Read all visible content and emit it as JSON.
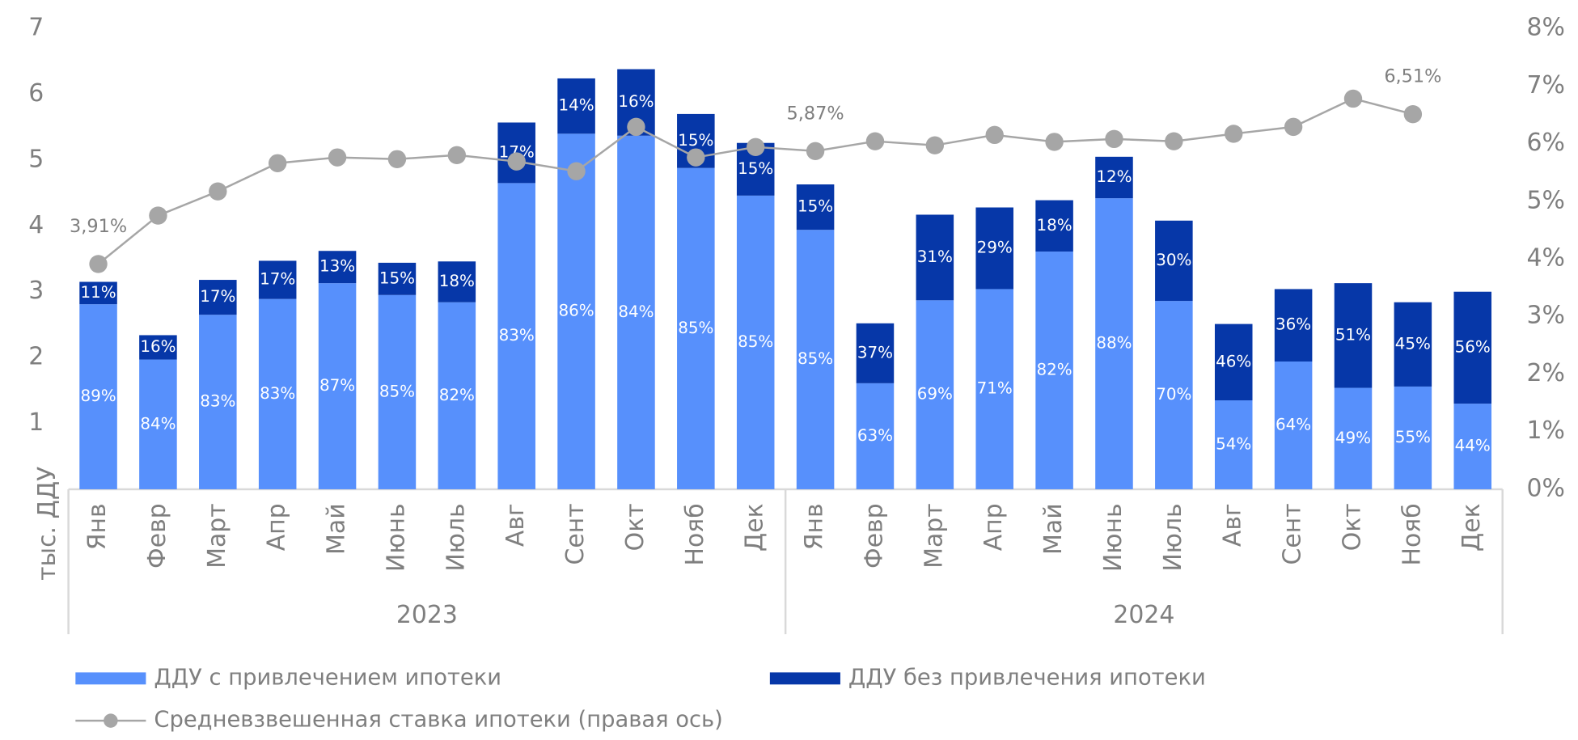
{
  "chart_data": {
    "type": "bar",
    "groups": [
      {
        "label": "2023",
        "months": [
          "Янв",
          "Февр",
          "Март",
          "Апр",
          "Май",
          "Июнь",
          "Июль",
          "Авг",
          "Сент",
          "Окт",
          "Нояб",
          "Дек"
        ]
      },
      {
        "label": "2024",
        "months": [
          "Янв",
          "Февр",
          "Март",
          "Апр",
          "Май",
          "Июнь",
          "Июль",
          "Авг",
          "Сент",
          "Окт",
          "Нояб",
          "Дек"
        ]
      }
    ],
    "ylabel": "тыс. ДДУ",
    "ylim": [
      0,
      7
    ],
    "yticks": [
      1,
      2,
      3,
      4,
      5,
      6,
      7
    ],
    "y2lim": [
      0,
      8
    ],
    "y2ticks": [
      {
        "value": 0,
        "label": "0%"
      },
      {
        "value": 1,
        "label": "1%"
      },
      {
        "value": 2,
        "label": "2%"
      },
      {
        "value": 3,
        "label": "3%"
      },
      {
        "value": 4,
        "label": "4%"
      },
      {
        "value": 5,
        "label": "5%"
      },
      {
        "value": 6,
        "label": "6%"
      },
      {
        "value": 7,
        "label": "7%"
      },
      {
        "value": 8,
        "label": "8%"
      }
    ],
    "series": [
      {
        "name": "ДДУ с привлечением ипотеки",
        "color": "#5790fc",
        "type": "bar",
        "values": [
          2.81,
          1.97,
          2.65,
          2.89,
          3.13,
          2.95,
          2.84,
          4.65,
          5.4,
          5.37,
          4.88,
          4.46,
          3.94,
          1.61,
          2.87,
          3.04,
          3.61,
          4.42,
          2.86,
          1.35,
          1.94,
          1.54,
          1.56,
          1.3
        ],
        "share_labels": [
          "89%",
          "84%",
          "83%",
          "83%",
          "87%",
          "85%",
          "82%",
          "83%",
          "86%",
          "84%",
          "85%",
          "85%",
          "85%",
          "63%",
          "69%",
          "71%",
          "82%",
          "88%",
          "70%",
          "54%",
          "64%",
          "49%",
          "55%",
          "44%"
        ]
      },
      {
        "name": "ДДУ без привлечения ипотеки",
        "color": "#0637a8",
        "type": "bar",
        "values": [
          0.34,
          0.37,
          0.53,
          0.58,
          0.49,
          0.49,
          0.62,
          0.92,
          0.84,
          1.01,
          0.82,
          0.8,
          0.69,
          0.91,
          1.3,
          1.24,
          0.78,
          0.63,
          1.22,
          1.16,
          1.1,
          1.59,
          1.28,
          1.7
        ],
        "share_labels": [
          "11%",
          "16%",
          "17%",
          "17%",
          "13%",
          "15%",
          "18%",
          "17%",
          "14%",
          "16%",
          "15%",
          "15%",
          "15%",
          "37%",
          "31%",
          "29%",
          "18%",
          "12%",
          "30%",
          "46%",
          "36%",
          "51%",
          "45%",
          "56%"
        ]
      },
      {
        "name": "Средневзвешенная ставка ипотеки (правая ось)",
        "color": "#a6a6a6",
        "type": "line",
        "axis": "y2",
        "values": [
          3.91,
          4.75,
          5.17,
          5.66,
          5.76,
          5.73,
          5.8,
          5.69,
          5.52,
          6.29,
          5.76,
          5.94,
          5.87,
          6.04,
          5.97,
          6.15,
          6.03,
          6.08,
          6.04,
          6.17,
          6.29,
          6.78,
          6.51
        ],
        "value_labels": [
          "3,91%",
          null,
          null,
          null,
          null,
          null,
          null,
          null,
          null,
          null,
          null,
          null,
          "5,87%",
          null,
          null,
          null,
          null,
          null,
          null,
          null,
          null,
          null,
          "6,51%"
        ]
      }
    ]
  }
}
